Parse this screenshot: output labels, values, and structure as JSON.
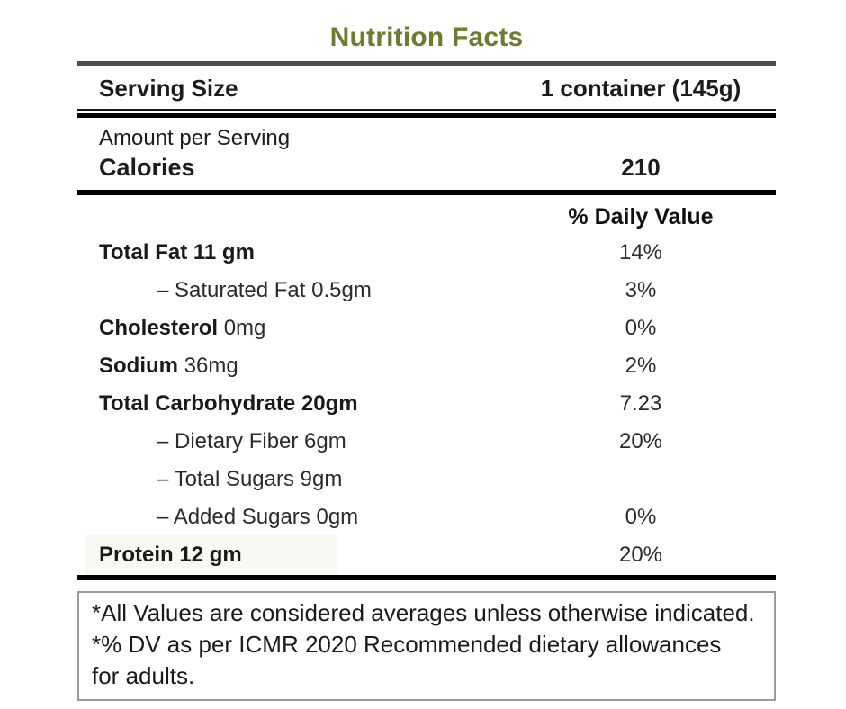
{
  "title": "Nutrition Facts",
  "serving": {
    "label": "Serving Size",
    "value": "1 container (145g)"
  },
  "amount_per_serving_label": "Amount per Serving",
  "calories": {
    "label": "Calories",
    "value": "210"
  },
  "daily_value_header": "% Daily Value",
  "rows": [
    {
      "bold": "Total Fat 11 gm",
      "rest": "",
      "value": "14%"
    },
    {
      "bold": "",
      "rest": "– Saturated Fat 0.5gm",
      "value": "3%"
    },
    {
      "bold": "Cholesterol",
      "rest": " 0mg",
      "value": "0%"
    },
    {
      "bold": "Sodium",
      "rest": " 36mg",
      "value": "2%"
    },
    {
      "bold": "Total Carbohydrate 20gm",
      "rest": "",
      "value": "7.23"
    },
    {
      "bold": "",
      "rest": "– Dietary Fiber 6gm",
      "value": "20%"
    },
    {
      "bold": "",
      "rest": "– Total Sugars 9gm",
      "value": ""
    },
    {
      "bold": "",
      "rest": "– Added Sugars 0gm",
      "value": "0%"
    },
    {
      "bold": "Protein 12 gm",
      "rest": "",
      "value": "20%"
    }
  ],
  "footnote": {
    "line1": "*All Values are considered averages unless otherwise indicated.",
    "line2": "*% DV as per ICMR 2020 Recommended dietary allowances",
    "line3": "for adults."
  },
  "colors": {
    "title_green": "#6d7c31",
    "title_rule_gray": "#4d4d4d",
    "rule_black": "#000000",
    "protein_highlight": "#faf8f2",
    "footnote_border": "#9b9b9b"
  }
}
